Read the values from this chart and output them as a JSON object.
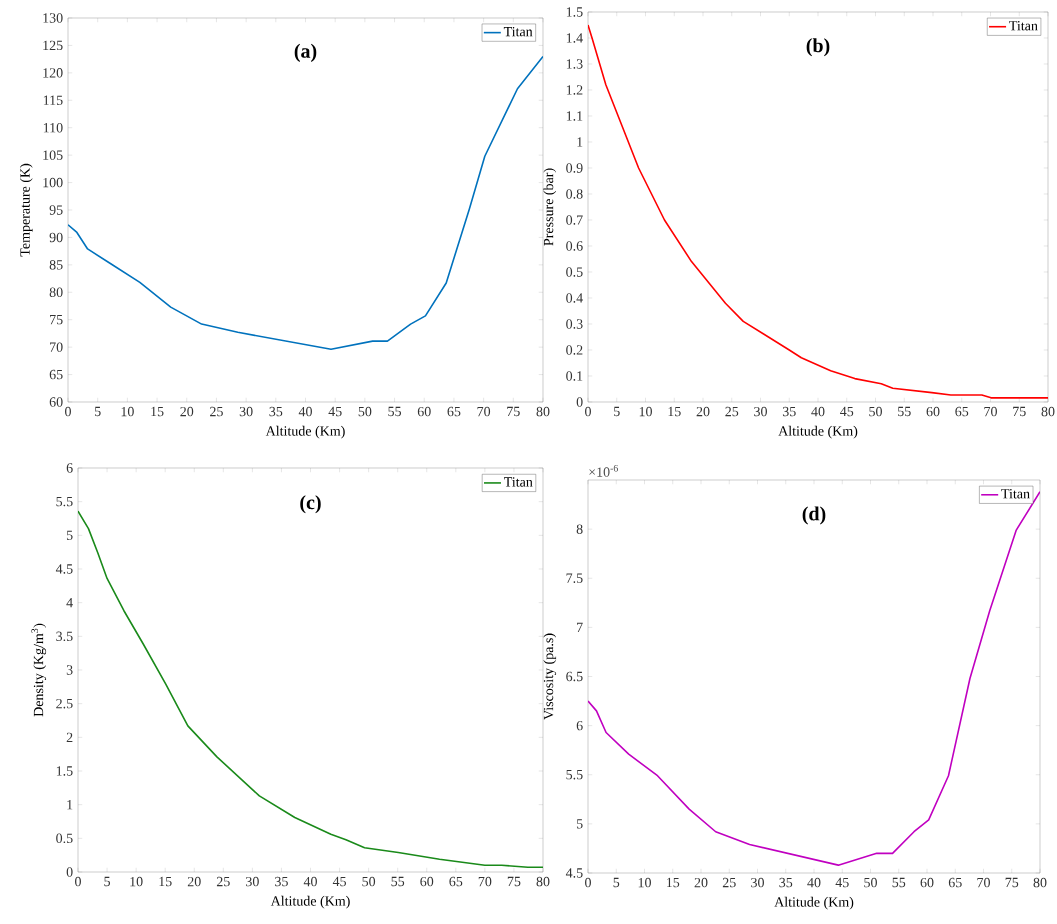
{
  "chart_data": [
    {
      "type": "line",
      "title": "(a)",
      "xlabel": "Altitude (Km)",
      "ylabel": "Temperature (K)",
      "legend": "top right",
      "x": [
        0,
        1.5,
        3.3,
        7.2,
        12.1,
        17.3,
        22.5,
        28.6,
        44.3,
        51.3,
        53.8,
        57.7,
        60.2,
        63.7,
        67.6,
        70.2,
        75.7,
        80
      ],
      "series": [
        {
          "name": "Titan",
          "color": "#0072bd",
          "values": [
            92.3,
            90.9,
            87.9,
            85.2,
            81.8,
            77.3,
            74.2,
            72.7,
            69.6,
            71.1,
            71.1,
            74.2,
            75.7,
            81.7,
            95.2,
            104.8,
            117.1,
            123.0
          ]
        }
      ],
      "xlim": [
        0,
        80
      ],
      "xticks": [
        0,
        5,
        10,
        15,
        20,
        25,
        30,
        35,
        40,
        45,
        50,
        55,
        60,
        65,
        70,
        75,
        80
      ],
      "ylim": [
        60,
        130
      ],
      "yticks": [
        60,
        65,
        70,
        75,
        80,
        85,
        90,
        95,
        100,
        105,
        110,
        115,
        120,
        125,
        130
      ]
    },
    {
      "type": "line",
      "title": "(b)",
      "xlabel": "Altitude (Km)",
      "ylabel": "Pressure (bar)",
      "legend": "top right",
      "x": [
        0,
        0.7,
        3.1,
        8.8,
        13.3,
        18,
        23.9,
        27,
        35,
        37.1,
        42.2,
        46.4,
        51,
        53,
        59.8,
        63.1,
        68.5,
        70.1,
        80
      ],
      "series": [
        {
          "name": "Titan",
          "color": "#ff0000",
          "values": [
            1.45,
            1.4,
            1.22,
            0.9,
            0.7,
            0.54,
            0.38,
            0.31,
            0.2,
            0.17,
            0.12,
            0.09,
            0.07,
            0.053,
            0.036,
            0.027,
            0.027,
            0.016,
            0.016
          ]
        }
      ],
      "xlim": [
        0,
        80
      ],
      "xticks": [
        0,
        5,
        10,
        15,
        20,
        25,
        30,
        35,
        40,
        45,
        50,
        55,
        60,
        65,
        70,
        75,
        80
      ],
      "ylim": [
        0,
        1.5
      ],
      "yticks": [
        0,
        0.1,
        0.2,
        0.3,
        0.4,
        0.5,
        0.6,
        0.7,
        0.8,
        0.9,
        1,
        1.1,
        1.2,
        1.3,
        1.4,
        1.5
      ]
    },
    {
      "type": "line",
      "title": "(c)",
      "xlabel": "Altitude (Km)",
      "ylabel": "Density (Kg/m$^{3}$)",
      "legend": "top right",
      "x": [
        0,
        1.8,
        3.4,
        5,
        7.9,
        11.2,
        15.1,
        18.9,
        23.9,
        31.2,
        37.3,
        43.5,
        46.1,
        49.3,
        55.1,
        62.2,
        70,
        72.9,
        77.4,
        80
      ],
      "series": [
        {
          "name": "Titan",
          "color": "#1a8a1a",
          "values": [
            5.36,
            5.1,
            4.74,
            4.36,
            3.88,
            3.39,
            2.79,
            2.17,
            1.71,
            1.13,
            0.81,
            0.56,
            0.48,
            0.36,
            0.29,
            0.19,
            0.1,
            0.1,
            0.07,
            0.07
          ]
        }
      ],
      "xlim": [
        0,
        80
      ],
      "xticks": [
        0,
        5,
        10,
        15,
        20,
        25,
        30,
        35,
        40,
        45,
        50,
        55,
        60,
        65,
        70,
        75,
        80
      ],
      "ylim": [
        0,
        6
      ],
      "yticks": [
        0,
        0.5,
        1,
        1.5,
        2,
        2.5,
        3,
        3.5,
        4,
        4.5,
        5,
        5.5,
        6
      ]
    },
    {
      "type": "line",
      "title": "(d)",
      "xlabel": "Altitude (Km)",
      "ylabel": "Viscosity (pa.s)",
      "legend": "top right",
      "annotations": [
        "×10$^{-6}$"
      ],
      "x": [
        0,
        1.5,
        3.2,
        7.2,
        12.3,
        17.9,
        22.6,
        28.6,
        44.3,
        51.1,
        53.9,
        57.7,
        60.3,
        63.8,
        67.6,
        71.1,
        75.8,
        80
      ],
      "series": [
        {
          "name": "Titan",
          "color": "#c000c0",
          "values": [
            6.25,
            6.15,
            5.93,
            5.71,
            5.49,
            5.15,
            4.92,
            4.79,
            4.58,
            4.7,
            4.7,
            4.92,
            5.04,
            5.49,
            6.48,
            7.17,
            7.99,
            8.38
          ]
        }
      ],
      "xlim": [
        0,
        80
      ],
      "xticks": [
        0,
        5,
        10,
        15,
        20,
        25,
        30,
        35,
        40,
        45,
        50,
        55,
        60,
        65,
        70,
        75,
        80
      ],
      "ylim": [
        4.5,
        8.5
      ],
      "yticks": [
        4.5,
        5,
        5.5,
        6,
        6.5,
        7,
        7.5,
        8
      ]
    }
  ]
}
